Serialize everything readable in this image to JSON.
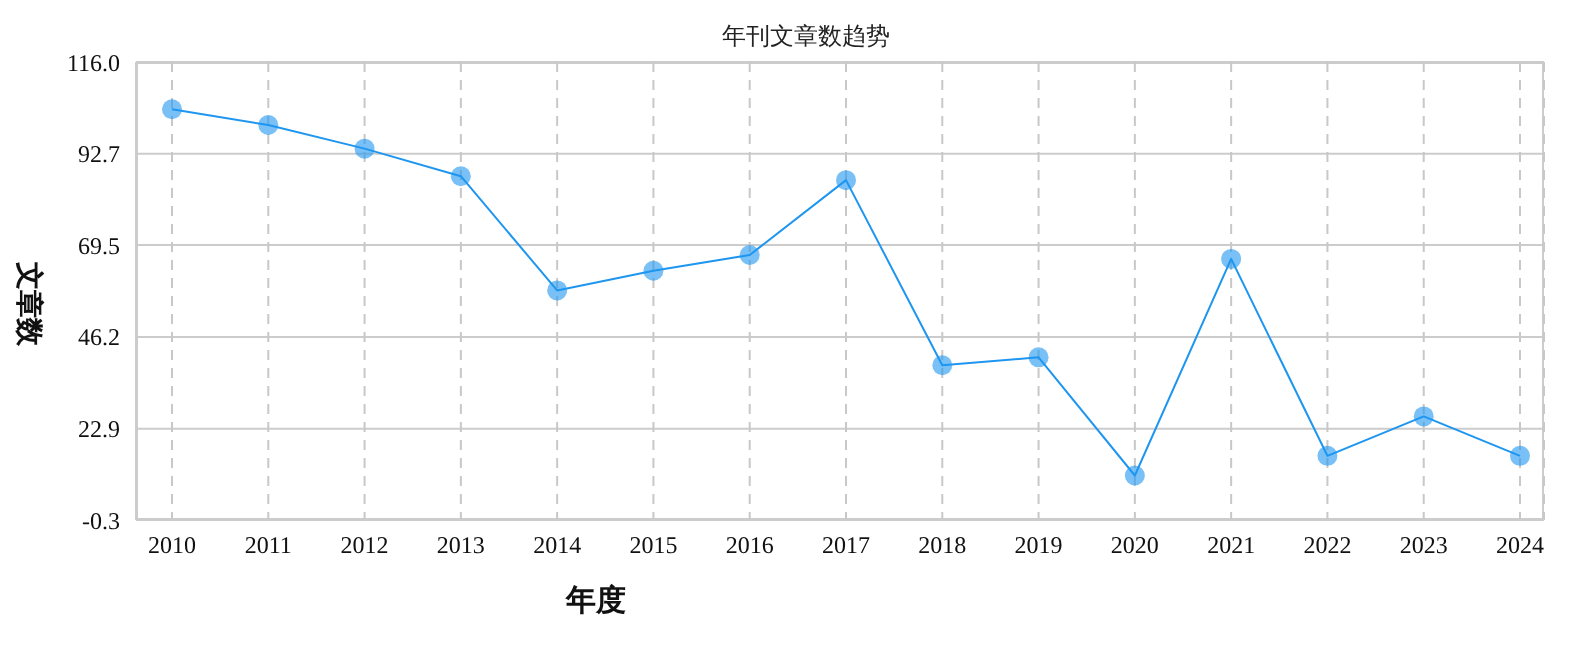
{
  "chart_data": {
    "type": "line",
    "title": "年刊文章数趋势",
    "xlabel": "年度",
    "ylabel": "文章数",
    "categories": [
      "2010",
      "2011",
      "2012",
      "2013",
      "2014",
      "2015",
      "2016",
      "2017",
      "2018",
      "2019",
      "2020",
      "2021",
      "2022",
      "2023",
      "2024"
    ],
    "series": [
      {
        "color": "#1e96f0",
        "values": [
          104,
          100,
          94,
          87,
          58,
          63,
          67,
          86,
          39,
          41,
          11,
          66,
          16,
          26,
          16
        ]
      }
    ],
    "ylim": [
      -0.3,
      116.0
    ],
    "yticks": [
      -0.3,
      22.9,
      46.2,
      69.5,
      92.7,
      {
        "value": 116.0,
        "label": "116.0"
      }
    ],
    "grid": true,
    "marker": "circle",
    "line_style": "solid"
  }
}
